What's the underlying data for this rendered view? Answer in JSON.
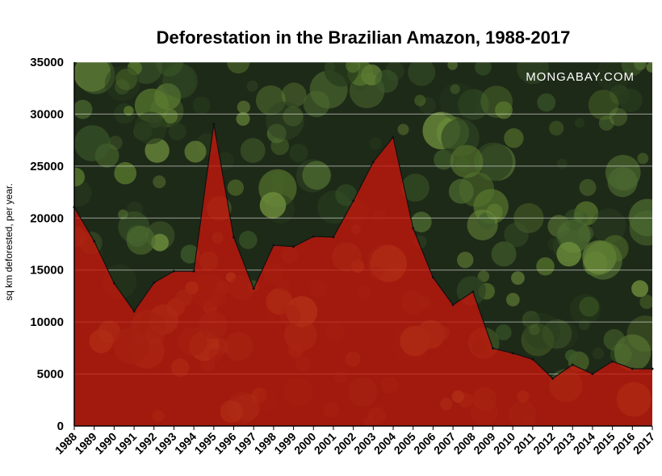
{
  "chart_data": {
    "type": "area",
    "title": "Deforestation in the Brazilian Amazon, 1988-2017",
    "ylabel": "sq km deforested, per year.",
    "xlabel": "",
    "watermark": "MONGABAY.COM",
    "ylim": [
      0,
      35000
    ],
    "yticks": [
      0,
      5000,
      10000,
      15000,
      20000,
      25000,
      30000,
      35000
    ],
    "grid": true,
    "legend": "none",
    "colors": {
      "area": "#c8160c",
      "area_opacity": 0.78,
      "outline": "#111111",
      "forest_dark": "#1e2a18",
      "forest_mid": "#3c5a2a",
      "forest_light": "#6f8f3c"
    },
    "categories": [
      "1988",
      "1989",
      "1990",
      "1991",
      "1992",
      "1993",
      "1994",
      "1995",
      "1996",
      "1997",
      "1998",
      "1999",
      "2000",
      "2001",
      "2002",
      "2003",
      "2004",
      "2005",
      "2006",
      "2007",
      "2008",
      "2009",
      "2010",
      "2011",
      "2012",
      "2013",
      "2014",
      "2015",
      "2016",
      "2017"
    ],
    "series": [
      {
        "values": [
          21050,
          17770,
          13730,
          11030,
          13786,
          14896,
          14896,
          29059,
          18161,
          13227,
          17383,
          17259,
          18226,
          18165,
          21651,
          25396,
          27772,
          19014,
          14286,
          11651,
          12911,
          7464,
          7000,
          6418,
          4571,
          5891,
          5012,
          6207,
          5500,
          5500
        ]
      }
    ]
  }
}
